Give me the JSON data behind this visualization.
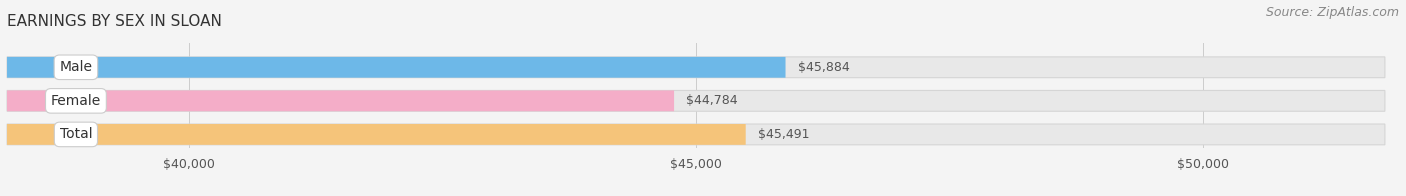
{
  "title": "EARNINGS BY SEX IN SLOAN",
  "source_text": "Source: ZipAtlas.com",
  "categories": [
    "Male",
    "Female",
    "Total"
  ],
  "values": [
    45884,
    44784,
    45491
  ],
  "bar_colors": [
    "#6db8e8",
    "#f4adc8",
    "#f5c47a"
  ],
  "value_labels": [
    "$45,884",
    "$44,784",
    "$45,491"
  ],
  "x_tick_values": [
    40000,
    45000,
    50000
  ],
  "x_tick_labels": [
    "$40,000",
    "$45,000",
    "$50,000"
  ],
  "xlim_min": 38200,
  "xlim_max": 51800,
  "data_min": 38200,
  "background_color": "#f4f4f4",
  "bar_bg_color": "#e8e8e8",
  "bar_bg_edge_color": "#d5d5d5",
  "title_fontsize": 11,
  "tick_fontsize": 9,
  "value_fontsize": 9,
  "label_fontsize": 10,
  "source_fontsize": 9
}
